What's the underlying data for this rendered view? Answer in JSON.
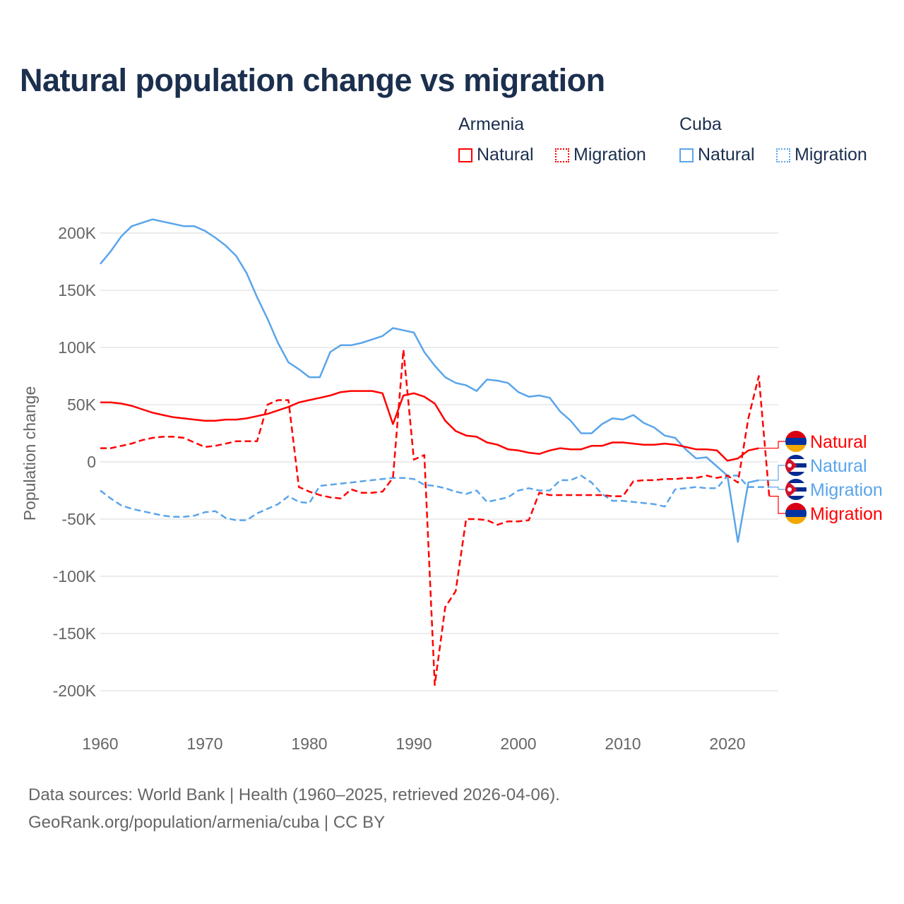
{
  "title": "Natural population change vs migration",
  "legend": {
    "groups": [
      {
        "name": "Armenia",
        "items": [
          {
            "label": "Natural",
            "color": "#ff0000",
            "style": "solid"
          },
          {
            "label": "Migration",
            "color": "#ff0000",
            "style": "dotted"
          }
        ]
      },
      {
        "name": "Cuba",
        "items": [
          {
            "label": "Natural",
            "color": "#5aa5eb",
            "style": "solid"
          },
          {
            "label": "Migration",
            "color": "#5aa5eb",
            "style": "dotted"
          }
        ]
      }
    ]
  },
  "footer": {
    "line1": "Data sources: World Bank | Health (1960–2025, retrieved 2026-04-06).",
    "line2": "GeoRank.org/population/armenia/cuba | CC BY"
  },
  "chart_data": {
    "type": "line",
    "title": "Natural population change vs migration",
    "xlabel": "",
    "ylabel": "Population change",
    "xlim": [
      1960,
      2025
    ],
    "ylim": [
      -220000,
      225000
    ],
    "xticks": [
      1960,
      1970,
      1980,
      1990,
      2000,
      2010,
      2020
    ],
    "yticks": [
      200000,
      150000,
      100000,
      50000,
      0,
      -50000,
      -100000,
      -150000,
      -200000
    ],
    "ytick_labels": [
      "200K",
      "150K",
      "100K",
      "50K",
      "0",
      "-50K",
      "-100K",
      "-150K",
      "-200K"
    ],
    "grid": true,
    "start_year": 1960,
    "series": [
      {
        "name": "Cuba Natural",
        "label": "Natural",
        "country": "Cuba",
        "color": "#5aa5eb",
        "dash": false,
        "values": [
          173,
          184,
          197,
          206,
          209,
          212,
          210,
          208,
          206,
          206,
          202,
          196,
          189,
          180,
          165,
          144,
          125,
          104,
          87,
          81,
          74,
          74,
          96,
          102,
          102,
          104,
          107,
          110,
          117,
          115,
          113,
          96,
          84,
          74,
          69,
          67,
          62,
          72,
          71,
          69,
          61,
          57,
          58,
          56,
          44,
          36,
          25,
          25,
          33,
          38,
          37,
          41,
          34,
          30,
          23,
          21,
          11,
          3,
          4,
          -4,
          -12,
          -70,
          -18,
          -16
        ]
      },
      {
        "name": "Cuba Migration",
        "label": "Migration",
        "country": "Cuba",
        "color": "#5aa5eb",
        "dash": true,
        "values": [
          -25,
          -32,
          -38,
          -41,
          -43,
          -45,
          -47,
          -48,
          -48,
          -47,
          -44,
          -43,
          -49,
          -51,
          -51,
          -45,
          -41,
          -37,
          -30,
          -35,
          -36,
          -21,
          -20,
          -19,
          -18,
          -17,
          -16,
          -15,
          -14,
          -14,
          -15,
          -20,
          -21,
          -23,
          -26,
          -28,
          -25,
          -35,
          -33,
          -31,
          -25,
          -23,
          -25,
          -25,
          -16,
          -16,
          -12,
          -18,
          -28,
          -34,
          -34,
          -35,
          -36,
          -37,
          -39,
          -24,
          -23,
          -22,
          -23,
          -23,
          -12,
          -12,
          -22,
          -22,
          -22
        ]
      },
      {
        "name": "Armenia Natural",
        "label": "Natural",
        "country": "Armenia",
        "color": "#ff0000",
        "dash": false,
        "values": [
          52,
          52,
          51,
          49,
          46,
          43,
          41,
          39,
          38,
          37,
          36,
          36,
          37,
          37,
          38,
          40,
          42,
          45,
          48,
          52,
          54,
          56,
          58,
          61,
          62,
          62,
          62,
          60,
          33,
          58,
          60,
          57,
          51,
          36,
          27,
          23,
          22,
          17,
          15,
          11,
          10,
          8,
          7,
          10,
          12,
          11,
          11,
          14,
          14,
          17,
          17,
          16,
          15,
          15,
          16,
          15,
          13,
          11,
          11,
          10,
          1,
          3,
          10,
          12
        ]
      },
      {
        "name": "Armenia Migration",
        "label": "Migration",
        "country": "Armenia",
        "color": "#ff0000",
        "dash": true,
        "values": [
          12,
          12,
          14,
          16,
          19,
          21,
          22,
          22,
          21,
          17,
          13,
          14,
          16,
          18,
          18,
          18,
          50,
          54,
          54,
          -22,
          -26,
          -29,
          -31,
          -32,
          -24,
          -27,
          -27,
          -26,
          -14,
          98,
          2,
          6,
          -195,
          -127,
          -113,
          -50,
          -50,
          -51,
          -55,
          -52,
          -52,
          -51,
          -27,
          -29,
          -29,
          -29,
          -29,
          -29,
          -29,
          -30,
          -30,
          -17,
          -16,
          -16,
          -15,
          -15,
          -14,
          -14,
          -12,
          -14,
          -12,
          -18,
          38,
          75,
          -30
        ]
      }
    ],
    "value_unit": "thousands",
    "end_label_order": [
      "Armenia Natural",
      "Cuba Natural",
      "Cuba Migration",
      "Armenia Migration"
    ]
  }
}
